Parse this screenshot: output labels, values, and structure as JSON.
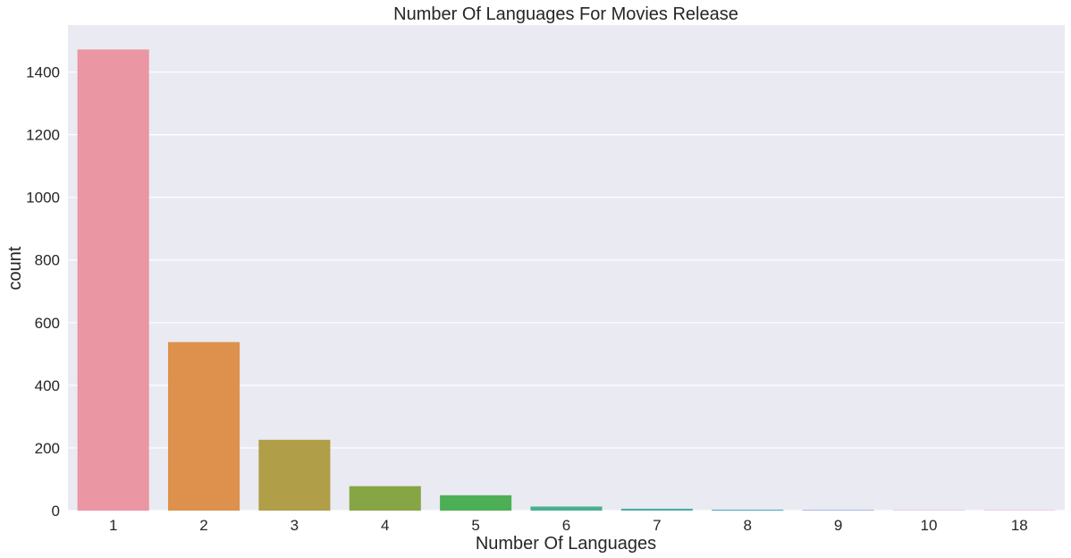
{
  "chart_data": {
    "type": "bar",
    "title": "Number Of Languages For Movies Release",
    "xlabel": "Number Of Languages",
    "ylabel": "count",
    "categories": [
      "1",
      "2",
      "3",
      "4",
      "5",
      "6",
      "7",
      "8",
      "9",
      "10",
      "18"
    ],
    "values": [
      1472,
      538,
      226,
      78,
      49,
      13,
      6,
      3,
      2,
      1,
      1
    ],
    "colors": [
      "#ea96a3",
      "#dd914c",
      "#b09e48",
      "#86a545",
      "#4caf56",
      "#4ab08f",
      "#4baca8",
      "#4da9c1",
      "#8ba2dd",
      "#c290e6",
      "#e88ad7"
    ],
    "ylim": [
      0,
      1550
    ],
    "yticks": [
      0,
      200,
      400,
      600,
      800,
      1000,
      1200,
      1400
    ],
    "grid": true,
    "background": "#eaeaf2",
    "grid_color": "#ffffff"
  }
}
